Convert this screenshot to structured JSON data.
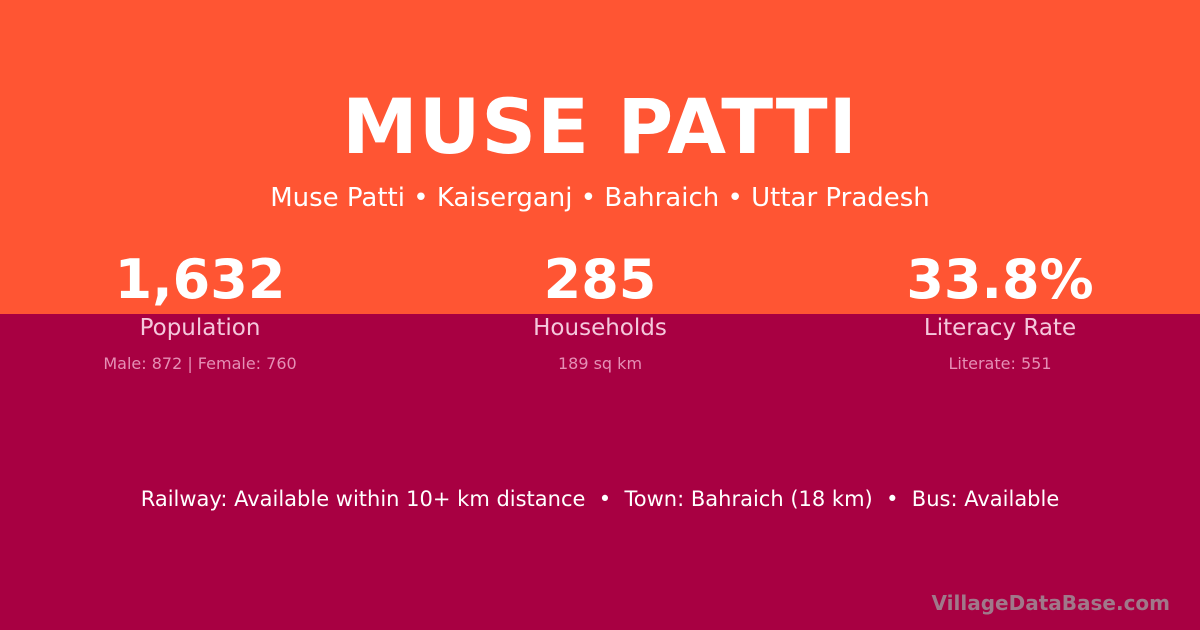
{
  "title": "MUSE PATTI",
  "subtitle": "Muse Patti • Kaiserganj • Bahraich • Uttar Pradesh",
  "stats": [
    {
      "value": "1,632",
      "label": "Population",
      "detail": "Male: 872 | Female: 760"
    },
    {
      "value": "285",
      "label": "Households",
      "detail": "189 sq km"
    },
    {
      "value": "33.8%",
      "label": "Literacy Rate",
      "detail": "Literate: 551"
    }
  ],
  "transport": "Railway: Available within 10+ km distance  •  Town: Bahraich (18 km)  •  Bus: Available",
  "brand": "VillageDataBase.com",
  "colors": {
    "top": "#ff5533",
    "bottom": "#a80042"
  }
}
